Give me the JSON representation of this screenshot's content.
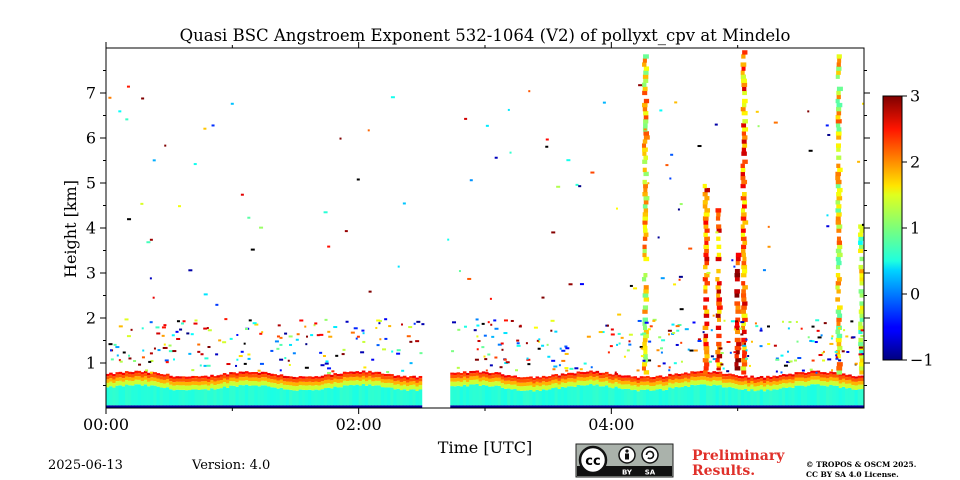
{
  "chart_data": {
    "type": "heatmap",
    "title": "Quasi BSC Angstroem Exponent 532-1064 (V2) of pollyxt_cpv at Mindelo",
    "xlabel": "Time [UTC]",
    "ylabel": "Height [km]",
    "xlim_hours": [
      0.0,
      6.0
    ],
    "ylim_km": [
      0.0,
      8.0
    ],
    "x_ticks": [
      {
        "value": 0.0,
        "label": "00:00"
      },
      {
        "value": 2.0,
        "label": "02:00"
      },
      {
        "value": 4.0,
        "label": "04:00"
      }
    ],
    "x_minor_ticks": [
      1.0,
      3.0,
      5.0
    ],
    "y_ticks": [
      {
        "value": 1,
        "label": "1"
      },
      {
        "value": 2,
        "label": "2"
      },
      {
        "value": 3,
        "label": "3"
      },
      {
        "value": 4,
        "label": "4"
      },
      {
        "value": 5,
        "label": "5"
      },
      {
        "value": 6,
        "label": "6"
      },
      {
        "value": 7,
        "label": "7"
      }
    ],
    "colorbar": {
      "range": [
        -1,
        3
      ],
      "colormap": "jet",
      "ticks": [
        {
          "value": -1,
          "label": "−1"
        },
        {
          "value": 0,
          "label": "0"
        },
        {
          "value": 1,
          "label": "1"
        },
        {
          "value": 2,
          "label": "2"
        },
        {
          "value": 3,
          "label": "3"
        }
      ]
    },
    "data_gap_hours": [
      2.52,
      2.7
    ],
    "boundary_layer": {
      "near_ground_value": 0.6,
      "layer_top_km": 0.75,
      "layer_top_value": 2.3,
      "surface_band_value": -0.9
    },
    "plumes": [
      {
        "time_hours": 4.27,
        "top_km": 7.8,
        "value": 1.6
      },
      {
        "time_hours": 4.75,
        "top_km": 4.9,
        "value": 2.1
      },
      {
        "time_hours": 4.85,
        "top_km": 4.4,
        "value": 2.2
      },
      {
        "time_hours": 5.0,
        "top_km": 3.4,
        "value": 2.4
      },
      {
        "time_hours": 5.05,
        "top_km": 7.9,
        "value": 2.0
      },
      {
        "time_hours": 5.8,
        "top_km": 7.8,
        "value": 1.5
      },
      {
        "time_hours": 5.98,
        "top_km": 4.0,
        "value": 1.2
      }
    ]
  },
  "footer": {
    "date": "2025-06-13",
    "version": "Version: 4.0",
    "license_badge": {
      "cc": "cc",
      "by": "BY",
      "sa": "SA"
    },
    "preliminary_line1": "Preliminary",
    "preliminary_line2": "Results.",
    "copyright_line1": "© TROPOS & OSCM 2025.",
    "copyright_line2": "CC BY SA 4.0 License."
  },
  "colors": {
    "prelim_text": "#e0302a",
    "badge_bg": "#aab2ab"
  }
}
